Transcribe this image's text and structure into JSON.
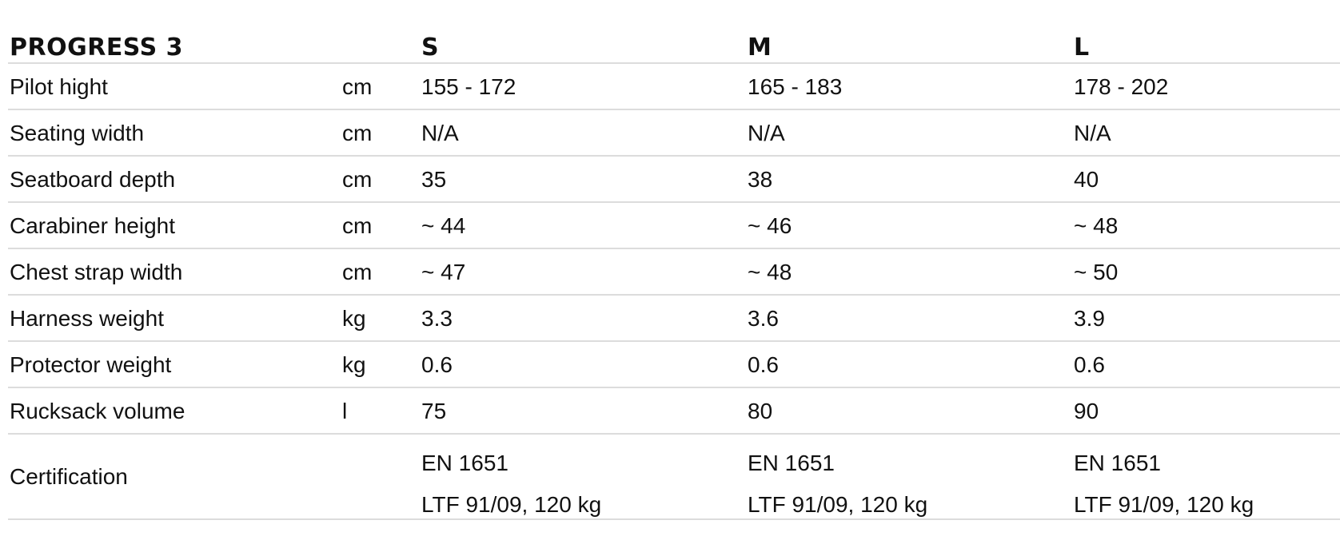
{
  "table": {
    "header": {
      "title": "PROGRESS 3",
      "sizes": [
        "S",
        "M",
        "L"
      ]
    },
    "rows": [
      {
        "label": "Pilot hight",
        "unit": "cm",
        "values": [
          "155 - 172",
          "165 - 183",
          "178 - 202"
        ]
      },
      {
        "label": "Seating width",
        "unit": "cm",
        "values": [
          "N/A",
          "N/A",
          "N/A"
        ]
      },
      {
        "label": "Seatboard depth",
        "unit": "cm",
        "values": [
          "35",
          "38",
          "40"
        ]
      },
      {
        "label": "Carabiner height",
        "unit": "cm",
        "values": [
          "~ 44",
          "~ 46",
          "~ 48"
        ]
      },
      {
        "label": "Chest strap width",
        "unit": "cm",
        "values": [
          "~ 47",
          "~ 48",
          "~ 50"
        ]
      },
      {
        "label": "Harness weight",
        "unit": "kg",
        "values": [
          "3.3",
          "3.6",
          "3.9"
        ]
      },
      {
        "label": "Protector weight",
        "unit": "kg",
        "values": [
          "0.6",
          "0.6",
          "0.6"
        ]
      },
      {
        "label": "Rucksack volume",
        "unit": "l",
        "values": [
          "75",
          "80",
          "90"
        ]
      }
    ],
    "certification": {
      "label": "Certification",
      "values": [
        [
          "EN 1651",
          "LTF 91/09, 120 kg"
        ],
        [
          "EN 1651",
          "LTF 91/09, 120 kg"
        ],
        [
          "EN 1651",
          "LTF 91/09, 120 kg"
        ]
      ]
    }
  }
}
